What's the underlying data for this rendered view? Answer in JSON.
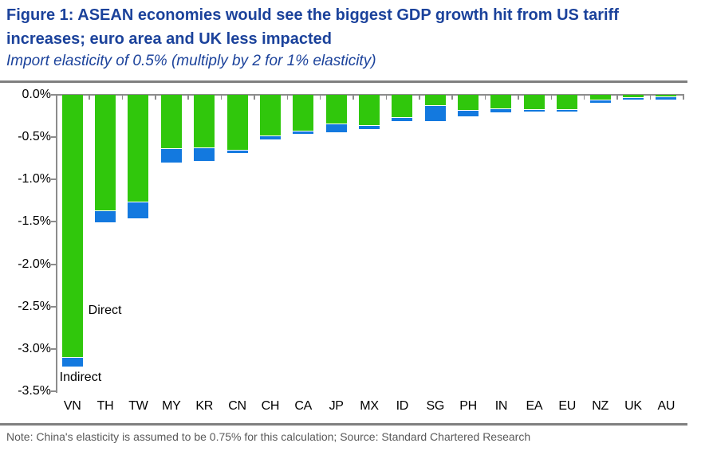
{
  "header": {
    "title": "Figure 1: ASEAN economies would see the biggest GDP growth hit from US tariff increases; euro area and UK less impacted",
    "subtitle": "Import elasticity of 0.5% (multiply by 2 for 1% elasticity)"
  },
  "footer": {
    "note": "Note: China's elasticity is assumed to be 0.75% for this calculation; Source: Standard Chartered Research"
  },
  "colors": {
    "title_blue": "#1B429B",
    "direct_green": "#30C70C",
    "indirect_blue": "#1379DF",
    "axis_gray": "#8C8C8C",
    "rule_gray": "#7F7F7F",
    "note_gray": "#595959",
    "label_black": "#000000"
  },
  "chart_data": {
    "type": "bar",
    "stacked": true,
    "orientation": "vertical-negative",
    "title": "Figure 1: ASEAN economies would see the biggest GDP growth hit from US tariff increases; euro area and UK less impacted",
    "subtitle": "Import elasticity of 0.5% (multiply by 2 for 1% elasticity)",
    "categories": [
      "VN",
      "TH",
      "TW",
      "MY",
      "KR",
      "CN",
      "CH",
      "CA",
      "JP",
      "MX",
      "ID",
      "SG",
      "PH",
      "IN",
      "EA",
      "EU",
      "NZ",
      "UK",
      "AU"
    ],
    "series": [
      {
        "name": "Direct",
        "color": "#30C70C",
        "values": [
          -3.1,
          -1.36,
          -1.26,
          -0.63,
          -0.62,
          -0.65,
          -0.48,
          -0.42,
          -0.34,
          -0.36,
          -0.26,
          -0.12,
          -0.18,
          -0.16,
          -0.17,
          -0.17,
          -0.06,
          -0.03,
          -0.02
        ]
      },
      {
        "name": "Indirect",
        "color": "#1379DF",
        "values": [
          -0.11,
          -0.15,
          -0.2,
          -0.17,
          -0.16,
          -0.04,
          -0.05,
          -0.04,
          -0.1,
          -0.04,
          -0.05,
          -0.19,
          -0.07,
          -0.05,
          -0.03,
          -0.03,
          -0.03,
          -0.03,
          -0.04
        ]
      }
    ],
    "totals": [
      -3.21,
      -1.51,
      -1.46,
      -0.8,
      -0.78,
      -0.69,
      -0.53,
      -0.46,
      -0.44,
      -0.4,
      -0.31,
      -0.31,
      -0.25,
      -0.21,
      -0.2,
      -0.2,
      -0.09,
      -0.06,
      -0.06
    ],
    "xlabel": "",
    "ylabel": "",
    "value_format": "percent",
    "y_ticks": [
      "0.0%",
      "-0.5%",
      "-1.0%",
      "-1.5%",
      "-2.0%",
      "-2.5%",
      "-3.0%",
      "-3.5%"
    ],
    "ylim": [
      -3.5,
      0
    ],
    "grid": false,
    "legend_position": "in-plot annotations",
    "annotations": [
      {
        "text": "Direct",
        "series": "Direct"
      },
      {
        "text": "Indirect",
        "series": "Indirect"
      }
    ]
  }
}
